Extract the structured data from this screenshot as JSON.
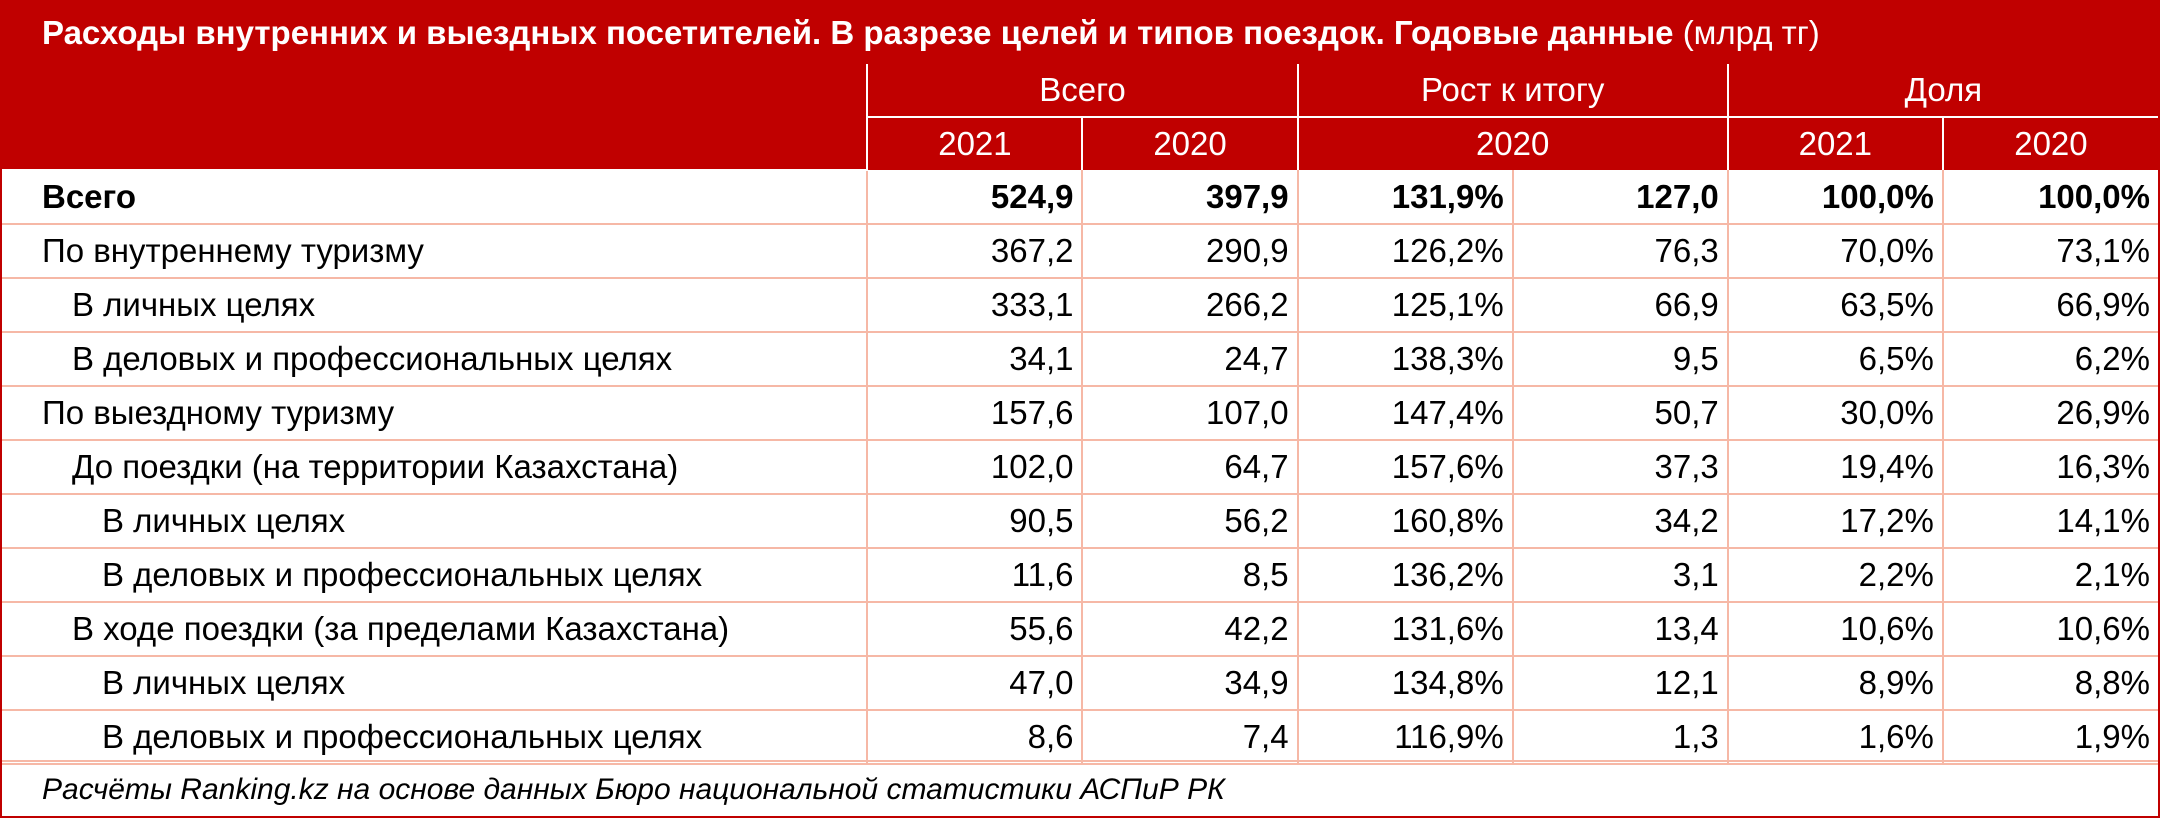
{
  "title": "Расходы внутренних и выездных посетителей. В разрезе целей и типов поездок. Годовые данные",
  "title_unit": "(млрд тг)",
  "header": {
    "groups": [
      "Всего",
      "Рост к итогу",
      "Доля"
    ],
    "years": [
      "2021",
      "2020",
      "2020",
      "2021",
      "2020"
    ]
  },
  "rows": [
    {
      "label": "Всего",
      "indent": 0,
      "bold": true,
      "values": [
        "524,9",
        "397,9",
        "131,9%",
        "127,0",
        "100,0%",
        "100,0%"
      ]
    },
    {
      "label": "По внутреннему туризму",
      "indent": 0,
      "bold": false,
      "values": [
        "367,2",
        "290,9",
        "126,2%",
        "76,3",
        "70,0%",
        "73,1%"
      ]
    },
    {
      "label": "В личных целях",
      "indent": 1,
      "bold": false,
      "values": [
        "333,1",
        "266,2",
        "125,1%",
        "66,9",
        "63,5%",
        "66,9%"
      ]
    },
    {
      "label": "В деловых и профессиональных целях",
      "indent": 1,
      "bold": false,
      "values": [
        "34,1",
        "24,7",
        "138,3%",
        "9,5",
        "6,5%",
        "6,2%"
      ]
    },
    {
      "label": "По выездному туризму",
      "indent": 0,
      "bold": false,
      "values": [
        "157,6",
        "107,0",
        "147,4%",
        "50,7",
        "30,0%",
        "26,9%"
      ]
    },
    {
      "label": "До поездки (на территории Казахстана)",
      "indent": 1,
      "bold": false,
      "values": [
        "102,0",
        "64,7",
        "157,6%",
        "37,3",
        "19,4%",
        "16,3%"
      ]
    },
    {
      "label": "В личных целях",
      "indent": 2,
      "bold": false,
      "values": [
        "90,5",
        "56,2",
        "160,8%",
        "34,2",
        "17,2%",
        "14,1%"
      ]
    },
    {
      "label": "В деловых и профессиональных целях",
      "indent": 2,
      "bold": false,
      "values": [
        "11,6",
        "8,5",
        "136,2%",
        "3,1",
        "2,2%",
        "2,1%"
      ]
    },
    {
      "label": "В ходе поездки (за пределами Казахстана)",
      "indent": 1,
      "bold": false,
      "values": [
        "55,6",
        "42,2",
        "131,6%",
        "13,4",
        "10,6%",
        "10,6%"
      ]
    },
    {
      "label": "В личных целях",
      "indent": 2,
      "bold": false,
      "values": [
        "47,0",
        "34,9",
        "134,8%",
        "12,1",
        "8,9%",
        "8,8%"
      ]
    },
    {
      "label": "В деловых и профессиональных целях",
      "indent": 2,
      "bold": false,
      "values": [
        "8,6",
        "7,4",
        "116,9%",
        "1,3",
        "1,6%",
        "1,9%"
      ]
    }
  ],
  "source": "Расчёты Ranking.kz на основе данных Бюро национальной статистики АСПиР РК",
  "colors": {
    "header_bg": "#c00000",
    "grid": "#f6b8a6"
  }
}
